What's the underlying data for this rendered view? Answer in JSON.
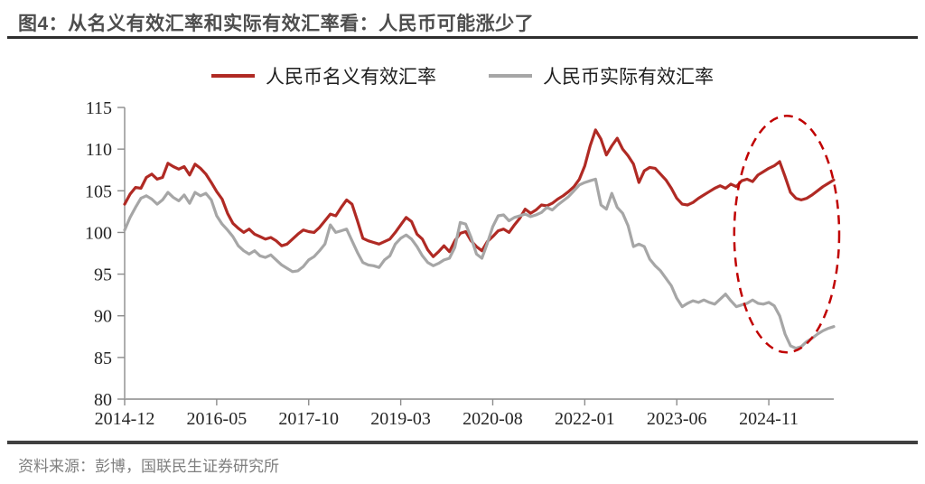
{
  "header": {
    "title": "图4：从名义有效汇率和实际有效汇率看：人民币可能涨少了"
  },
  "footer": {
    "source": "资料来源：彭博，国联民生证券研究所"
  },
  "chart_data": {
    "type": "line",
    "title": "图4：从名义有效汇率和实际有效汇率看：人民币可能涨少了",
    "xlabel": "",
    "ylabel": "",
    "ylim": [
      80,
      115
    ],
    "y_ticks": [
      80,
      85,
      90,
      95,
      100,
      105,
      110,
      115
    ],
    "grid": false,
    "legend_position": "top-center",
    "x_start": "2014-12",
    "x_frequency": "monthly",
    "x_tick_labels": [
      "2014-12",
      "2016-05",
      "2017-10",
      "2019-03",
      "2020-08",
      "2022-01",
      "2023-06",
      "2024-11"
    ],
    "x_tick_month_index": [
      0,
      17,
      34,
      51,
      68,
      85,
      102,
      119
    ],
    "axis_color": "#8c8c8c",
    "x_axis_color": "#a6a6a6",
    "tick_label_color": "#262626",
    "series": [
      {
        "name": "人民币名义有效汇率",
        "color": "#b02a24",
        "values": [
          103.4,
          104.6,
          105.4,
          105.3,
          106.6,
          107.0,
          106.4,
          106.6,
          108.3,
          107.9,
          107.6,
          107.9,
          106.9,
          108.2,
          107.7,
          107.0,
          106.0,
          104.9,
          104.0,
          102.3,
          101.1,
          100.5,
          100.0,
          100.4,
          99.8,
          99.5,
          99.2,
          99.4,
          99.0,
          98.4,
          98.6,
          99.2,
          99.8,
          100.3,
          100.1,
          100.0,
          100.6,
          101.4,
          102.2,
          102.0,
          103.0,
          103.9,
          103.4,
          101.4,
          99.3,
          99.0,
          98.8,
          98.6,
          98.9,
          99.2,
          100.0,
          100.9,
          101.8,
          101.3,
          99.8,
          99.2,
          97.9,
          97.1,
          97.7,
          98.4,
          97.7,
          99.0,
          99.9,
          100.1,
          99.0,
          98.3,
          97.8,
          98.9,
          99.5,
          100.2,
          100.4,
          100.0,
          100.9,
          101.7,
          102.8,
          102.3,
          102.7,
          103.3,
          103.2,
          103.5,
          104.0,
          104.4,
          104.9,
          105.5,
          106.4,
          108.0,
          110.4,
          112.3,
          111.2,
          109.3,
          110.4,
          111.3,
          110.0,
          109.2,
          108.2,
          106.0,
          107.4,
          107.8,
          107.7,
          107.0,
          106.3,
          105.3,
          104.1,
          103.4,
          103.3,
          103.6,
          104.1,
          104.5,
          104.9,
          105.3,
          105.6,
          105.3,
          105.8,
          105.5,
          106.2,
          106.4,
          106.1,
          106.9,
          107.3,
          107.7,
          108.0,
          108.5,
          106.7,
          104.8,
          104.1,
          103.9,
          104.1,
          104.5,
          105.0,
          105.5,
          105.9,
          106.3
        ]
      },
      {
        "name": "人民币实际有效汇率",
        "color": "#a6a6a6",
        "values": [
          100.3,
          101.8,
          103.0,
          104.1,
          104.4,
          104.0,
          103.4,
          103.9,
          104.8,
          104.2,
          103.8,
          104.5,
          103.5,
          104.8,
          104.4,
          104.7,
          103.9,
          102.0,
          101.0,
          100.3,
          99.5,
          98.4,
          97.8,
          97.4,
          97.8,
          97.2,
          97.0,
          97.3,
          96.7,
          96.1,
          95.7,
          95.3,
          95.4,
          95.9,
          96.7,
          97.1,
          97.8,
          98.6,
          100.9,
          100.0,
          100.2,
          100.4,
          99.0,
          97.6,
          96.4,
          96.1,
          96.0,
          95.8,
          96.7,
          97.2,
          98.6,
          99.3,
          99.7,
          99.2,
          98.3,
          97.2,
          96.4,
          96.0,
          96.3,
          96.7,
          96.9,
          98.2,
          101.2,
          101.0,
          99.4,
          97.4,
          96.9,
          98.7,
          100.7,
          102.0,
          102.1,
          101.4,
          101.8,
          102.0,
          102.2,
          101.9,
          102.1,
          102.4,
          103.0,
          102.7,
          103.3,
          103.8,
          104.3,
          105.0,
          105.7,
          106.0,
          106.2,
          106.4,
          103.3,
          102.8,
          104.7,
          103.0,
          102.3,
          100.8,
          98.3,
          98.6,
          98.3,
          96.8,
          96.0,
          95.4,
          94.5,
          93.6,
          92.1,
          91.1,
          91.5,
          91.8,
          91.6,
          91.9,
          91.6,
          91.4,
          92.0,
          92.6,
          91.8,
          91.1,
          91.3,
          91.5,
          91.9,
          91.5,
          91.4,
          91.6,
          91.2,
          90.0,
          87.8,
          86.4,
          86.1,
          86.3,
          86.9,
          87.3,
          87.8,
          88.2,
          88.5,
          88.7
        ]
      }
    ],
    "annotation_ellipse": {
      "description": "dashed ellipse highlighting late-2024/2025 divergence",
      "center_month_index": 122.3,
      "center_value": 99.8,
      "rx_months": 9.7,
      "ry_values": 14.2,
      "color": "#c00000"
    }
  }
}
